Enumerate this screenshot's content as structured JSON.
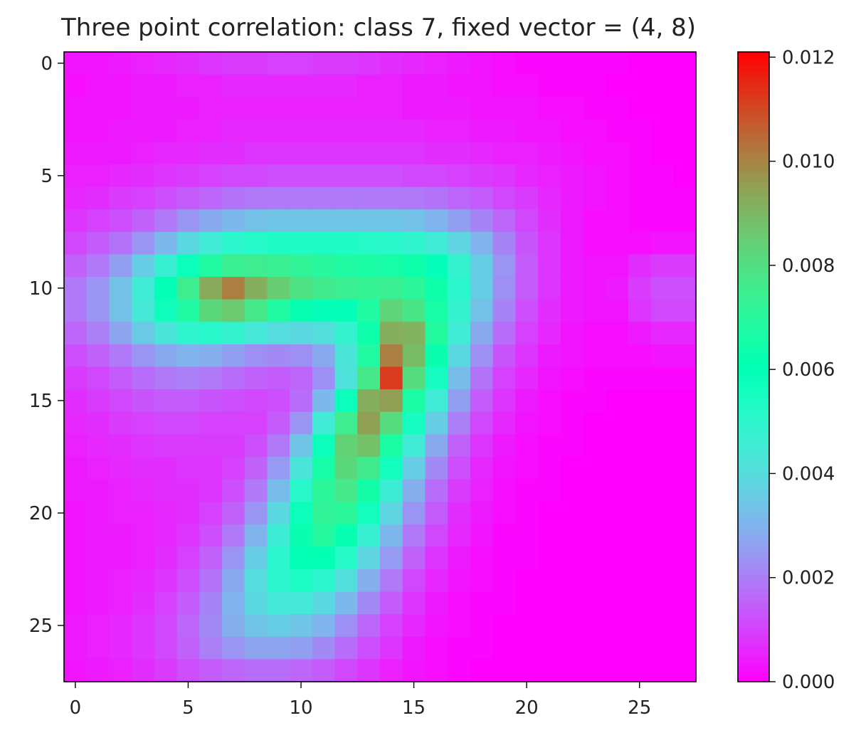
{
  "chart_data": {
    "type": "heatmap",
    "title": "Three point correlation: class 7, fixed vector = (4, 8)",
    "xlabel": "",
    "ylabel": "",
    "rows": 28,
    "cols": 28,
    "x_ticks": [
      0,
      5,
      10,
      15,
      20,
      25
    ],
    "y_ticks": [
      0,
      5,
      10,
      15,
      20,
      25
    ],
    "xlim": [
      -0.5,
      27.5
    ],
    "ylim": [
      27.5,
      -0.5
    ],
    "grid": false,
    "colormap": "rainbow",
    "colorbar": {
      "min": 0.0,
      "max": 0.0121,
      "ticks": [
        "0.000",
        "0.002",
        "0.004",
        "0.006",
        "0.008",
        "0.010",
        "0.012"
      ],
      "tick_values": [
        0.0,
        0.002,
        0.004,
        0.006,
        0.008,
        0.01,
        0.012
      ]
    },
    "values": [
      [
        0.0003,
        0.0003,
        0.0004,
        0.0005,
        0.0006,
        0.0007,
        0.0008,
        0.0009,
        0.0009,
        0.001,
        0.001,
        0.0009,
        0.0009,
        0.0008,
        0.0007,
        0.0006,
        0.0005,
        0.0004,
        0.0003,
        0.0002,
        0.0001,
        0.0001,
        0.0001,
        0.0001,
        0.0001,
        0.0,
        0.0,
        0.0
      ],
      [
        0.0002,
        0.0003,
        0.0003,
        0.0004,
        0.0004,
        0.0005,
        0.0005,
        0.0006,
        0.0006,
        0.0006,
        0.0006,
        0.0006,
        0.0006,
        0.0005,
        0.0005,
        0.0004,
        0.0004,
        0.0003,
        0.0003,
        0.0002,
        0.0002,
        0.0001,
        0.0001,
        0.0001,
        0.0,
        0.0,
        0.0,
        0.0
      ],
      [
        0.0003,
        0.0003,
        0.0003,
        0.0004,
        0.0004,
        0.0004,
        0.0005,
        0.0005,
        0.0005,
        0.0005,
        0.0005,
        0.0005,
        0.0005,
        0.0005,
        0.0005,
        0.0004,
        0.0004,
        0.0004,
        0.0003,
        0.0003,
        0.0003,
        0.0002,
        0.0002,
        0.0001,
        0.0001,
        0.0,
        0.0,
        0.0
      ],
      [
        0.0003,
        0.0003,
        0.0004,
        0.0004,
        0.0004,
        0.0005,
        0.0005,
        0.0006,
        0.0006,
        0.0006,
        0.0006,
        0.0006,
        0.0006,
        0.0006,
        0.0006,
        0.0006,
        0.0005,
        0.0005,
        0.0004,
        0.0004,
        0.0003,
        0.0003,
        0.0002,
        0.0002,
        0.0001,
        0.0001,
        0.0,
        0.0
      ],
      [
        0.0004,
        0.0004,
        0.0004,
        0.0005,
        0.0006,
        0.0006,
        0.0007,
        0.0007,
        0.0008,
        0.0008,
        0.0008,
        0.0008,
        0.0008,
        0.0008,
        0.0008,
        0.0008,
        0.0007,
        0.0007,
        0.0006,
        0.0005,
        0.0005,
        0.0004,
        0.0003,
        0.0002,
        0.0002,
        0.0001,
        0.0,
        0.0
      ],
      [
        0.0005,
        0.0005,
        0.0006,
        0.0007,
        0.0008,
        0.0009,
        0.001,
        0.0011,
        0.0011,
        0.0012,
        0.0012,
        0.0012,
        0.0012,
        0.0012,
        0.0012,
        0.0011,
        0.0011,
        0.001,
        0.0009,
        0.0008,
        0.0006,
        0.0005,
        0.0004,
        0.0003,
        0.0002,
        0.0001,
        0.0001,
        0.0
      ],
      [
        0.0006,
        0.0007,
        0.0009,
        0.001,
        0.0012,
        0.0014,
        0.0016,
        0.0018,
        0.0019,
        0.0019,
        0.0019,
        0.0019,
        0.0019,
        0.0019,
        0.0019,
        0.0019,
        0.0018,
        0.0016,
        0.0014,
        0.0011,
        0.0009,
        0.0006,
        0.0004,
        0.0003,
        0.0002,
        0.0001,
        0.0001,
        0.0001
      ],
      [
        0.0008,
        0.001,
        0.0012,
        0.0015,
        0.0019,
        0.0024,
        0.0028,
        0.0031,
        0.0033,
        0.0034,
        0.0034,
        0.0034,
        0.0034,
        0.0034,
        0.0034,
        0.0033,
        0.003,
        0.0026,
        0.0021,
        0.0016,
        0.0011,
        0.0007,
        0.0004,
        0.0002,
        0.0002,
        0.0001,
        0.0001,
        0.0001
      ],
      [
        0.0011,
        0.0014,
        0.0018,
        0.0024,
        0.0031,
        0.0039,
        0.0045,
        0.005,
        0.0052,
        0.0053,
        0.0053,
        0.0053,
        0.0053,
        0.0052,
        0.0051,
        0.0049,
        0.0045,
        0.0038,
        0.003,
        0.0021,
        0.0013,
        0.0008,
        0.0004,
        0.0002,
        0.0002,
        0.0002,
        0.0003,
        0.0003
      ],
      [
        0.0015,
        0.0019,
        0.0026,
        0.0036,
        0.0047,
        0.0058,
        0.0068,
        0.0074,
        0.0075,
        0.0074,
        0.0072,
        0.007,
        0.0068,
        0.0067,
        0.0066,
        0.0064,
        0.0059,
        0.0048,
        0.0036,
        0.0024,
        0.0014,
        0.0008,
        0.0004,
        0.0003,
        0.0003,
        0.0007,
        0.0009,
        0.0009
      ],
      [
        0.0019,
        0.0024,
        0.0033,
        0.0045,
        0.006,
        0.0075,
        0.0093,
        0.0101,
        0.0092,
        0.0085,
        0.0079,
        0.0076,
        0.0074,
        0.0073,
        0.0074,
        0.0071,
        0.0064,
        0.005,
        0.0036,
        0.0023,
        0.0014,
        0.0008,
        0.0004,
        0.0003,
        0.0004,
        0.0009,
        0.0012,
        0.0012
      ],
      [
        0.0019,
        0.0024,
        0.0033,
        0.0044,
        0.0057,
        0.0068,
        0.0082,
        0.0086,
        0.0077,
        0.0068,
        0.0062,
        0.0059,
        0.0059,
        0.0068,
        0.0083,
        0.0078,
        0.0066,
        0.0048,
        0.0033,
        0.0021,
        0.0012,
        0.0007,
        0.0004,
        0.0003,
        0.0003,
        0.0008,
        0.0011,
        0.0011
      ],
      [
        0.0016,
        0.002,
        0.0027,
        0.0035,
        0.0043,
        0.0049,
        0.0051,
        0.0048,
        0.0044,
        0.004,
        0.0039,
        0.0041,
        0.0048,
        0.0064,
        0.0092,
        0.0091,
        0.0069,
        0.0045,
        0.0028,
        0.0017,
        0.001,
        0.0006,
        0.0003,
        0.0002,
        0.0002,
        0.0004,
        0.0006,
        0.0006
      ],
      [
        0.0012,
        0.0015,
        0.0019,
        0.0024,
        0.0028,
        0.003,
        0.0029,
        0.0026,
        0.0023,
        0.0022,
        0.0023,
        0.0028,
        0.0043,
        0.0068,
        0.0101,
        0.0089,
        0.0063,
        0.0039,
        0.0023,
        0.0013,
        0.0008,
        0.0004,
        0.0003,
        0.0002,
        0.0002,
        0.0002,
        0.0003,
        0.0003
      ],
      [
        0.0009,
        0.0011,
        0.0014,
        0.0017,
        0.0019,
        0.002,
        0.0019,
        0.0017,
        0.0015,
        0.0014,
        0.0016,
        0.0023,
        0.0042,
        0.0077,
        0.0112,
        0.0081,
        0.0055,
        0.0032,
        0.0018,
        0.001,
        0.0006,
        0.0003,
        0.0002,
        0.0001,
        0.0001,
        0.0001,
        0.0001,
        0.0001
      ],
      [
        0.0007,
        0.0009,
        0.0011,
        0.0013,
        0.0014,
        0.0014,
        0.0013,
        0.0012,
        0.0011,
        0.0012,
        0.0017,
        0.0031,
        0.0058,
        0.0092,
        0.0095,
        0.0067,
        0.0045,
        0.0026,
        0.0014,
        0.0008,
        0.0004,
        0.0002,
        0.0001,
        0.0001,
        0.0,
        0.0,
        0.0,
        0.0
      ],
      [
        0.0006,
        0.0007,
        0.0009,
        0.001,
        0.0011,
        0.0011,
        0.001,
        0.001,
        0.001,
        0.0014,
        0.0024,
        0.0045,
        0.0075,
        0.0095,
        0.0081,
        0.0055,
        0.0036,
        0.002,
        0.0011,
        0.0006,
        0.0003,
        0.0002,
        0.0001,
        0.0,
        0.0,
        0.0,
        0.0,
        0.0
      ],
      [
        0.0005,
        0.0006,
        0.0007,
        0.0008,
        0.0009,
        0.0009,
        0.0009,
        0.0009,
        0.0012,
        0.0019,
        0.0034,
        0.0058,
        0.0084,
        0.0088,
        0.0067,
        0.0045,
        0.0028,
        0.0015,
        0.0008,
        0.0004,
        0.0002,
        0.0001,
        0.0001,
        0.0,
        0.0,
        0.0,
        0.0,
        0.0
      ],
      [
        0.0004,
        0.0005,
        0.0006,
        0.0007,
        0.0007,
        0.0008,
        0.0008,
        0.001,
        0.0015,
        0.0025,
        0.0043,
        0.0066,
        0.0082,
        0.0076,
        0.0056,
        0.0036,
        0.0022,
        0.0012,
        0.0006,
        0.0003,
        0.0002,
        0.0001,
        0.0,
        0.0,
        0.0,
        0.0,
        0.0,
        0.0
      ],
      [
        0.0004,
        0.0004,
        0.0005,
        0.0006,
        0.0007,
        0.0007,
        0.0008,
        0.0012,
        0.0019,
        0.0032,
        0.0051,
        0.0071,
        0.0077,
        0.0065,
        0.0046,
        0.0029,
        0.0017,
        0.0009,
        0.0005,
        0.0002,
        0.0001,
        0.0001,
        0.0,
        0.0,
        0.0,
        0.0,
        0.0,
        0.0
      ],
      [
        0.0003,
        0.0004,
        0.0005,
        0.0005,
        0.0006,
        0.0007,
        0.001,
        0.0015,
        0.0024,
        0.0039,
        0.0058,
        0.0072,
        0.0071,
        0.0056,
        0.0038,
        0.0024,
        0.0014,
        0.0007,
        0.0004,
        0.0002,
        0.0001,
        0.0,
        0.0,
        0.0,
        0.0,
        0.0,
        0.0,
        0.0
      ],
      [
        0.0003,
        0.0004,
        0.0004,
        0.0005,
        0.0006,
        0.0008,
        0.0012,
        0.0019,
        0.003,
        0.0046,
        0.0063,
        0.0069,
        0.0062,
        0.0047,
        0.0031,
        0.0019,
        0.0011,
        0.0006,
        0.0003,
        0.0001,
        0.0001,
        0.0,
        0.0,
        0.0,
        0.0,
        0.0,
        0.0,
        0.0
      ],
      [
        0.0003,
        0.0004,
        0.0004,
        0.0005,
        0.0007,
        0.001,
        0.0015,
        0.0024,
        0.0036,
        0.005,
        0.006,
        0.0061,
        0.0052,
        0.0038,
        0.0025,
        0.0015,
        0.0008,
        0.0004,
        0.0002,
        0.0001,
        0.0001,
        0.0,
        0.0,
        0.0,
        0.0,
        0.0,
        0.0,
        0.0
      ],
      [
        0.0003,
        0.0004,
        0.0005,
        0.0006,
        0.0008,
        0.0012,
        0.0018,
        0.0028,
        0.004,
        0.005,
        0.0054,
        0.005,
        0.0041,
        0.0029,
        0.0019,
        0.0011,
        0.0006,
        0.0003,
        0.0002,
        0.0001,
        0.0,
        0.0,
        0.0,
        0.0,
        0.0,
        0.0,
        0.0,
        0.0
      ],
      [
        0.0003,
        0.0004,
        0.0005,
        0.0007,
        0.001,
        0.0014,
        0.0021,
        0.003,
        0.0039,
        0.0044,
        0.0044,
        0.0039,
        0.0031,
        0.0022,
        0.0014,
        0.0008,
        0.0004,
        0.0002,
        0.0001,
        0.0001,
        0.0,
        0.0,
        0.0,
        0.0,
        0.0,
        0.0,
        0.0,
        0.0
      ],
      [
        0.0004,
        0.0005,
        0.0006,
        0.0008,
        0.0011,
        0.0016,
        0.0022,
        0.0029,
        0.0034,
        0.0036,
        0.0034,
        0.003,
        0.0023,
        0.0016,
        0.001,
        0.0006,
        0.0003,
        0.0002,
        0.0001,
        0.0,
        0.0,
        0.0,
        0.0,
        0.0,
        0.0,
        0.0,
        0.0,
        0.0
      ],
      [
        0.0004,
        0.0005,
        0.0006,
        0.0008,
        0.0011,
        0.0015,
        0.002,
        0.0024,
        0.0027,
        0.0027,
        0.0026,
        0.0022,
        0.0017,
        0.0012,
        0.0008,
        0.0004,
        0.0002,
        0.0001,
        0.0001,
        0.0,
        0.0,
        0.0,
        0.0,
        0.0,
        0.0,
        0.0,
        0.0,
        0.0
      ],
      [
        0.0003,
        0.0004,
        0.0005,
        0.0007,
        0.0009,
        0.0012,
        0.0014,
        0.0016,
        0.0017,
        0.0017,
        0.0016,
        0.0014,
        0.0011,
        0.0008,
        0.0005,
        0.0003,
        0.0002,
        0.0001,
        0.0,
        0.0,
        0.0,
        0.0,
        0.0,
        0.0,
        0.0,
        0.0,
        0.0,
        0.0
      ]
    ]
  }
}
